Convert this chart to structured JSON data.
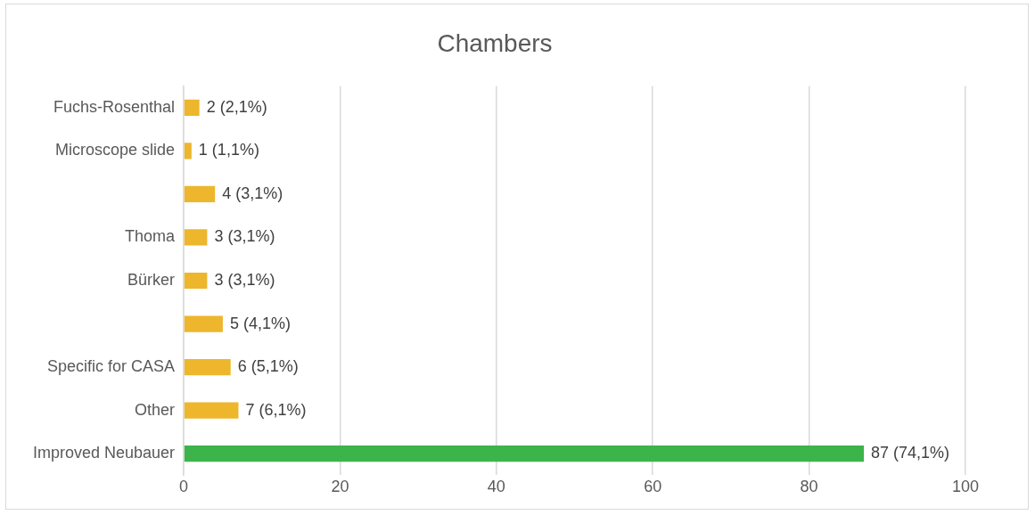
{
  "chart_data": {
    "type": "bar",
    "orientation": "horizontal",
    "title": "Chambers",
    "categories": [
      "Fuchs-Rosenthal",
      "Microscope slide",
      null,
      "Thoma",
      "Bürker",
      null,
      "Specific for CASA",
      "Other",
      "Improved Neubauer"
    ],
    "values": [
      2,
      1,
      4,
      3,
      3,
      5,
      6,
      7,
      87
    ],
    "colors": [
      "#edb62c",
      "#edb62c",
      "#edb62c",
      "#edb62c",
      "#edb62c",
      "#edb62c",
      "#edb62c",
      "#edb62c",
      "#3cb44b"
    ],
    "value_labels": [
      "2 (2,1%)",
      "1 (1,1%)",
      "4 (3,1%)",
      "3 (3,1%)",
      "3 (3,1%)",
      "5 (4,1%)",
      "6 (5,1%)",
      "7 (6,1%)",
      "87 (74,1%)"
    ],
    "xlim": [
      0,
      100
    ],
    "xticks": [
      0,
      20,
      40,
      60,
      80,
      100
    ],
    "grid": "x",
    "legend": false
  }
}
